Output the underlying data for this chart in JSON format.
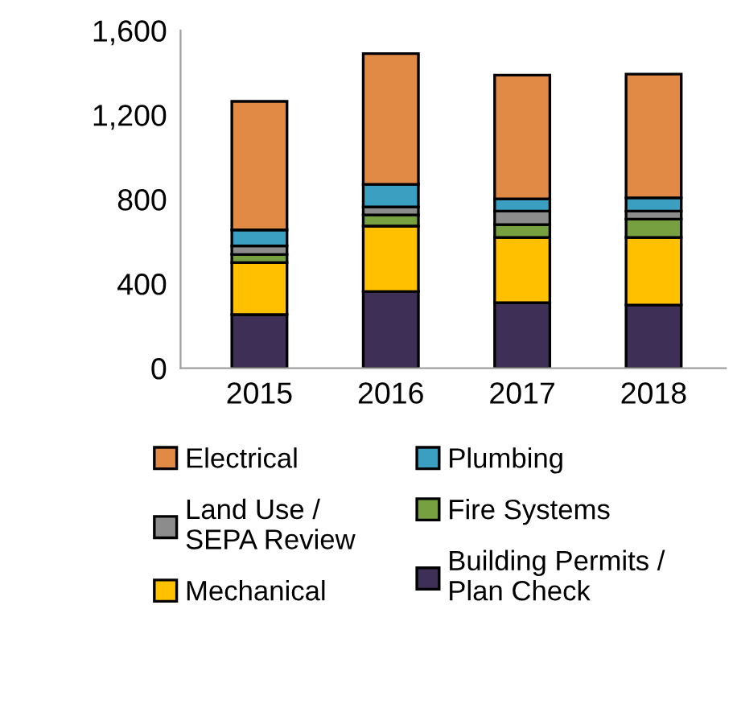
{
  "chart_data": {
    "type": "bar",
    "stacked": true,
    "categories": [
      "2015",
      "2016",
      "2017",
      "2018"
    ],
    "series": [
      {
        "name": "Building Permits /\nPlan Check",
        "color": "#3d2f55",
        "values": [
          254,
          363,
          310,
          299
        ]
      },
      {
        "name": "Mechanical",
        "color": "#ffc000",
        "values": [
          246,
          310,
          309,
          320
        ]
      },
      {
        "name": "Fire Systems",
        "color": "#77a040",
        "values": [
          38,
          53,
          61,
          87
        ]
      },
      {
        "name": "Land Use /\nSEPA Review",
        "color": "#8c8c8c",
        "values": [
          41,
          38,
          64,
          38
        ]
      },
      {
        "name": "Plumbing",
        "color": "#3a9fc0",
        "values": [
          76,
          107,
          58,
          63
        ]
      },
      {
        "name": "Electrical",
        "color": "#e08a46",
        "values": [
          609,
          619,
          586,
          586
        ]
      }
    ],
    "ylim": [
      0,
      1600
    ],
    "yticks": [
      0,
      400,
      800,
      {
        "value": 1200,
        "label": "1,200"
      },
      {
        "value": 1600,
        "label": "1,600"
      }
    ],
    "legend": "bottom"
  }
}
